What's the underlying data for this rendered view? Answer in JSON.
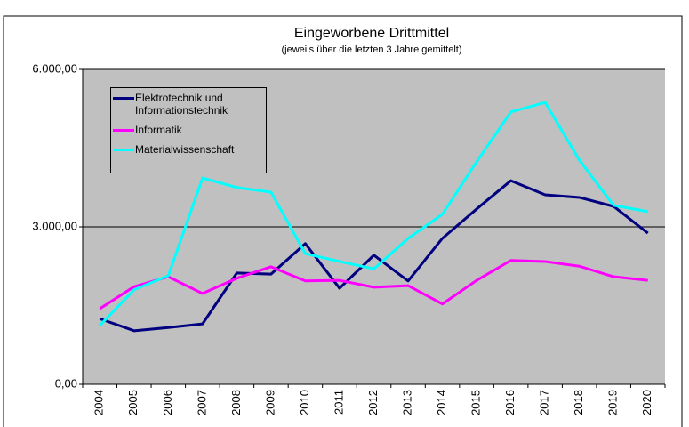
{
  "chart_data": {
    "type": "line",
    "title": "Eingeworbene Drittmittel",
    "subtitle": "(jeweils über die letzten 3 Jahre gemittelt)",
    "categories": [
      "2004",
      "2005",
      "2006",
      "2007",
      "2008",
      "2009",
      "2010",
      "2011",
      "2012",
      "2013",
      "2014",
      "2015",
      "2016",
      "2017",
      "2018",
      "2019",
      "2020"
    ],
    "series": [
      {
        "name": "Elektrotechnik und Informationstechnik",
        "color": "#000080",
        "values": [
          1250,
          1020,
          1080,
          1150,
          2120,
          2100,
          2680,
          1830,
          2460,
          1970,
          2780,
          3340,
          3880,
          3610,
          3560,
          3390,
          2880
        ]
      },
      {
        "name": "Informatik",
        "color": "#ff00ff",
        "values": [
          1440,
          1860,
          2050,
          1730,
          2020,
          2240,
          1970,
          1980,
          1850,
          1880,
          1530,
          1980,
          2360,
          2340,
          2250,
          2050,
          1980
        ]
      },
      {
        "name": "Materialwissenschaft",
        "color": "#00ffff",
        "values": [
          1120,
          1800,
          2070,
          3930,
          3750,
          3660,
          2490,
          2340,
          2200,
          2780,
          3240,
          4240,
          5190,
          5370,
          4270,
          3410,
          3290
        ]
      }
    ],
    "ylim": [
      0,
      6000
    ],
    "yticks": [
      {
        "value": 0,
        "label": "0,00"
      },
      {
        "value": 3000,
        "label": "3.000,00"
      },
      {
        "value": 6000,
        "label": "6.000,00"
      }
    ],
    "grid": true,
    "legend": "upper-left"
  }
}
